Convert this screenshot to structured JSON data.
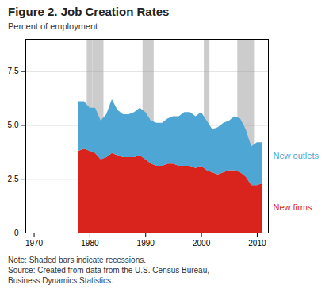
{
  "chart_data": {
    "type": "area",
    "title": "Figure 2. Job Creation Rates",
    "ylabel": "Percent of employment",
    "note": "Note: Shaded bars indicate recessions.\nSource: Created from data from the U.S. Census Bureau,\nBusiness Dynamics Statistics.",
    "stacked": true,
    "grid": true,
    "x": [
      1978,
      1979,
      1980,
      1981,
      1982,
      1983,
      1984,
      1985,
      1986,
      1987,
      1988,
      1989,
      1990,
      1991,
      1992,
      1993,
      1994,
      1995,
      1996,
      1997,
      1998,
      1999,
      2000,
      2001,
      2002,
      2003,
      2004,
      2005,
      2006,
      2007,
      2008,
      2009,
      2010,
      2011
    ],
    "xlim": [
      1968.5,
      2012
    ],
    "xticks": [
      1970,
      1980,
      1990,
      2000,
      2010
    ],
    "ylim": [
      0,
      9
    ],
    "yticks": [
      0,
      2.5,
      {
        "value": 5.0,
        "label": "5.0"
      },
      7.5
    ],
    "series": [
      {
        "name": "New firms",
        "color": "#d9241e",
        "values": [
          3.8,
          3.9,
          3.8,
          3.7,
          3.4,
          3.5,
          3.7,
          3.6,
          3.5,
          3.5,
          3.5,
          3.6,
          3.4,
          3.2,
          3.1,
          3.1,
          3.2,
          3.2,
          3.1,
          3.1,
          3.1,
          3.0,
          3.1,
          2.9,
          2.8,
          2.7,
          2.8,
          2.9,
          2.9,
          2.8,
          2.6,
          2.2,
          2.2,
          2.3
        ]
      },
      {
        "name": "New outlets",
        "color": "#4da6d4",
        "values": [
          2.3,
          2.2,
          2.0,
          2.1,
          1.8,
          2.0,
          2.5,
          2.1,
          2.0,
          2.0,
          2.1,
          2.2,
          2.2,
          2.0,
          2.0,
          2.0,
          2.1,
          2.2,
          2.3,
          2.5,
          2.5,
          2.4,
          2.5,
          2.3,
          2.0,
          2.2,
          2.3,
          2.3,
          2.5,
          2.5,
          2.2,
          1.8,
          2.0,
          1.9
        ]
      }
    ],
    "recessions": {
      "color": "#cccccc",
      "spans": [
        [
          1979.5,
          1980.5
        ],
        [
          1980.5,
          1982.5
        ],
        [
          1989.5,
          1991.5
        ],
        [
          2000.5,
          2001.5
        ],
        [
          2006.5,
          2009.5
        ]
      ]
    }
  }
}
